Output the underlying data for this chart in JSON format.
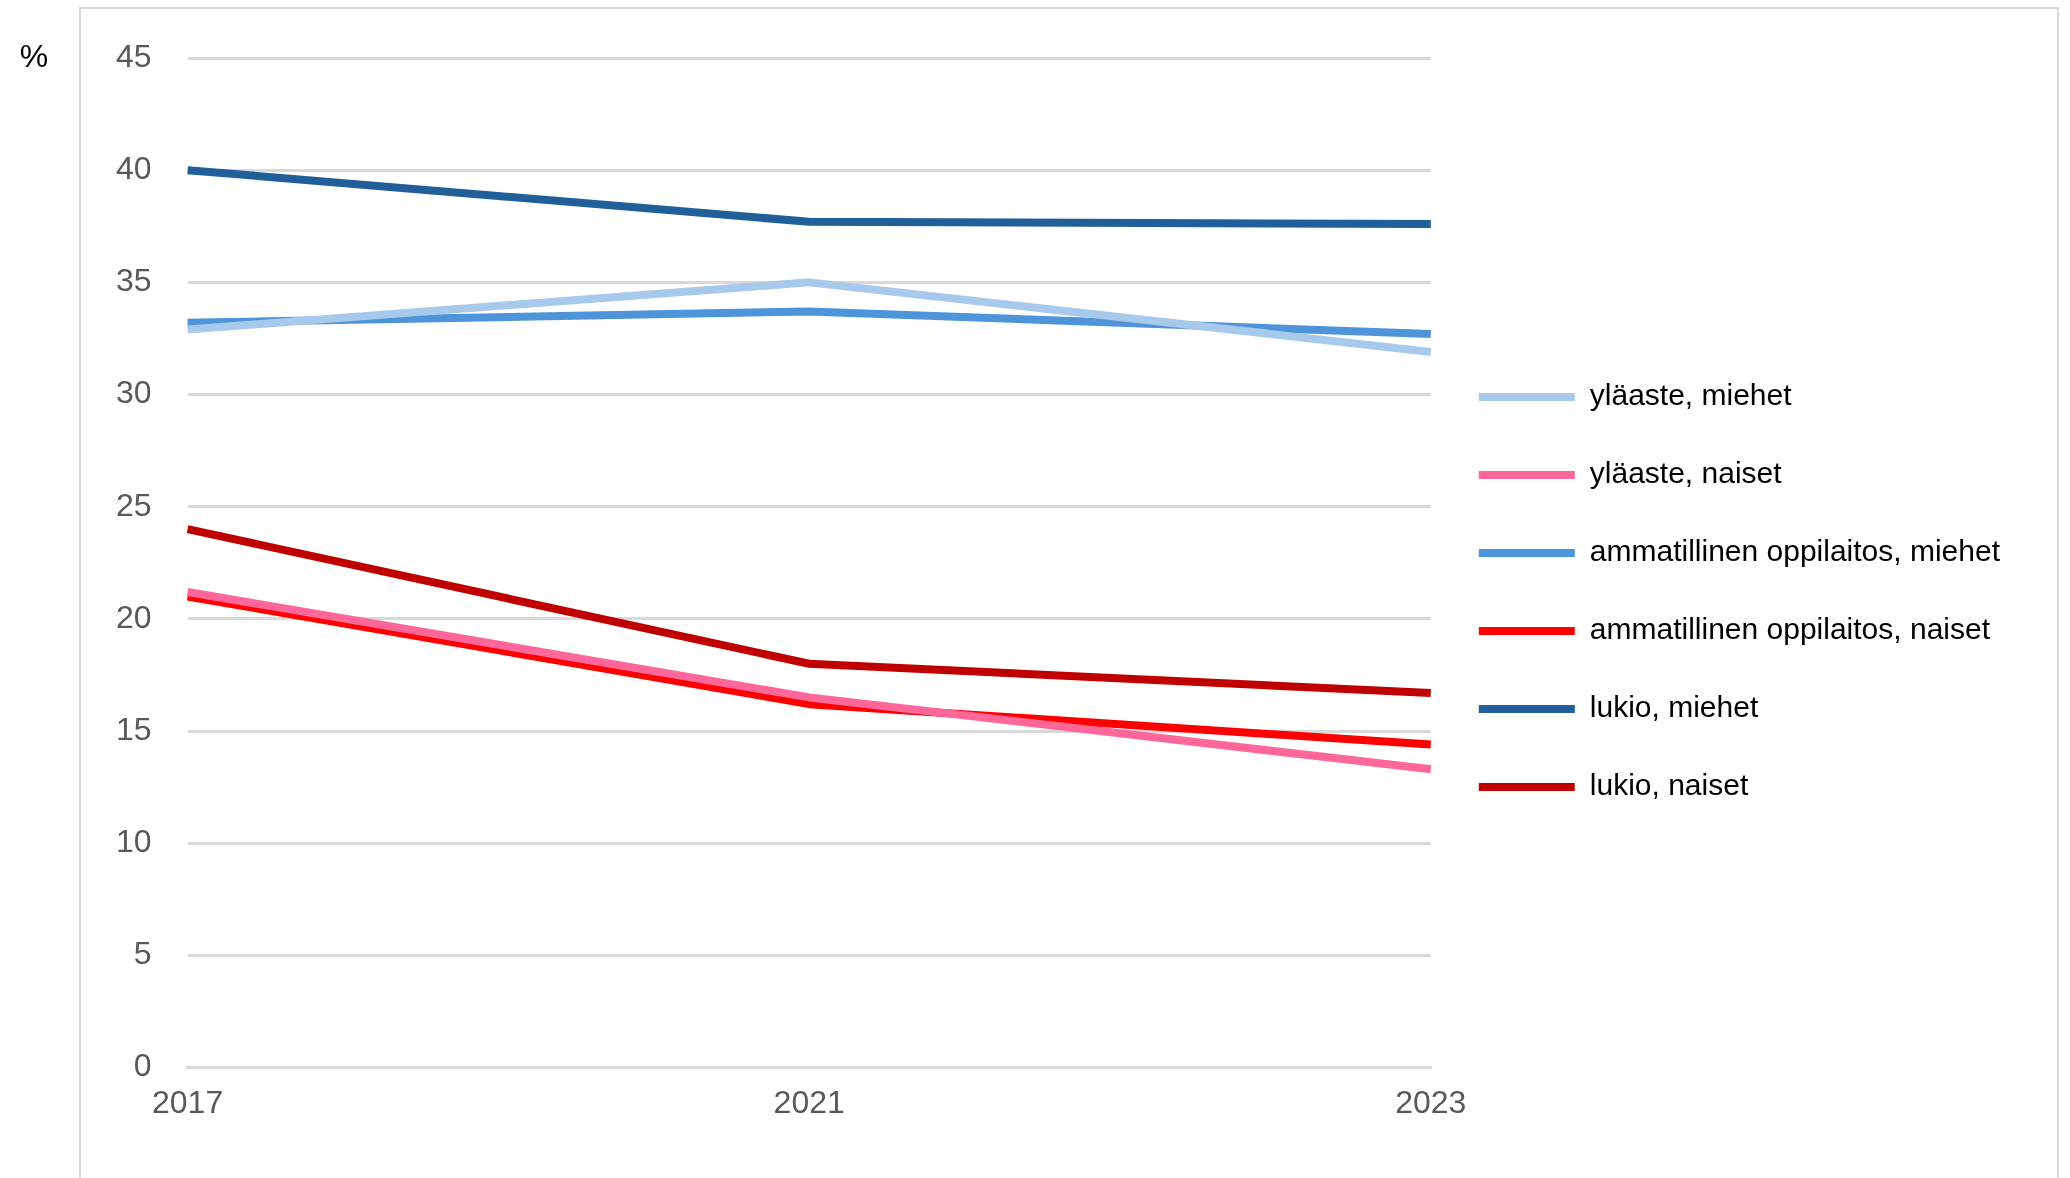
{
  "chart_data": {
    "type": "line",
    "ylabel": "%",
    "categories": [
      "2017",
      "2021",
      "2023"
    ],
    "series": [
      {
        "name": "yläaste, miehet",
        "color": "#a6c9ec",
        "values": [
          32.9,
          35.0,
          31.9
        ]
      },
      {
        "name": "yläaste, naiset",
        "color": "#ff6699",
        "values": [
          21.2,
          16.5,
          13.3
        ]
      },
      {
        "name": "ammatillinen oppilaitos, miehet",
        "color": "#4d94db",
        "values": [
          33.2,
          33.7,
          32.7
        ]
      },
      {
        "name": "ammatillinen oppilaitos, naiset",
        "color": "#ff0000",
        "values": [
          21.0,
          16.2,
          14.4
        ]
      },
      {
        "name": "lukio, miehet",
        "color": "#215f9a",
        "values": [
          40.0,
          37.7,
          37.6
        ]
      },
      {
        "name": "lukio, naiset",
        "color": "#c00000",
        "values": [
          24.0,
          18.0,
          16.7
        ]
      }
    ],
    "ylim": [
      0,
      45
    ],
    "yticks": [
      0,
      5,
      10,
      15,
      20,
      25,
      30,
      35,
      40,
      45
    ],
    "grid": "y",
    "legend": "right",
    "marker": "none",
    "line_style": "solid"
  }
}
